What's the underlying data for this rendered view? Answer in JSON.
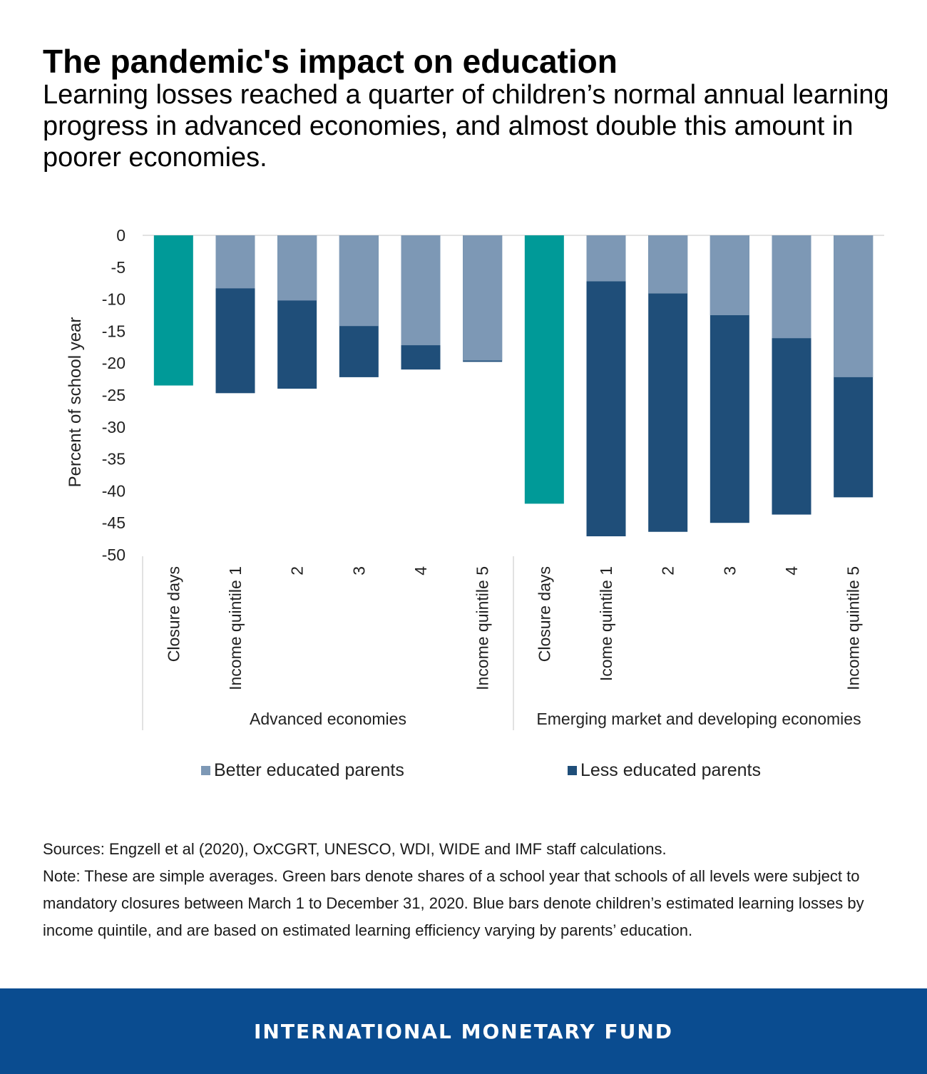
{
  "header": {
    "title": "The pandemic's impact on education",
    "subtitle": "Learning losses reached a quarter of children’s normal annual learning progress in advanced economies, and almost double this amount in poorer economies."
  },
  "chart_data": {
    "type": "bar",
    "ylabel": "Percent of school year",
    "ylim": [
      -50,
      0
    ],
    "yticks": [
      0,
      -5,
      -10,
      -15,
      -20,
      -25,
      -30,
      -35,
      -40,
      -45,
      -50
    ],
    "groups": [
      {
        "name": "Advanced economies",
        "categories": [
          "Closure days",
          "Income quintile 1",
          "2",
          "3",
          "4",
          "Income quintile 5"
        ],
        "closure_days": -23.5,
        "better_educated": [
          null,
          -8.3,
          -10.2,
          -14.2,
          -17.2,
          -19.6
        ],
        "less_educated": [
          null,
          -24.7,
          -24.0,
          -22.2,
          -21.0,
          -19.8
        ]
      },
      {
        "name": "Emerging market and developing economies",
        "categories": [
          "Closure days",
          "Icome quintile 1",
          "2",
          "3",
          "4",
          "Income quintile 5"
        ],
        "closure_days": -42.0,
        "better_educated": [
          null,
          -7.2,
          -9.1,
          -12.5,
          -16.1,
          -22.2
        ],
        "less_educated": [
          null,
          -47.1,
          -46.4,
          -45.0,
          -43.7,
          -41.0
        ]
      }
    ],
    "legend": [
      {
        "name": "Better educated parents",
        "color": "#7d98b5"
      },
      {
        "name": "Less educated parents",
        "color": "#1f4e79"
      }
    ],
    "colors": {
      "closure": "#009a98",
      "better": "#7d98b5",
      "less": "#1f4e79"
    },
    "legend_position": "bottom"
  },
  "notes": {
    "sources": "Sources: Engzell et al (2020), OxCGRT, UNESCO, WDI, WIDE and IMF staff calculations.",
    "note": "Note: These are simple averages. Green bars denote shares of a school year that schools of all levels were subject to mandatory closures between March 1 to December 31, 2020. Blue bars denote children’s estimated learning losses by income quintile, and are based on estimated learning efficiency varying by parents’ education."
  },
  "footer": {
    "brand": "INTERNATIONAL MONETARY FUND"
  }
}
